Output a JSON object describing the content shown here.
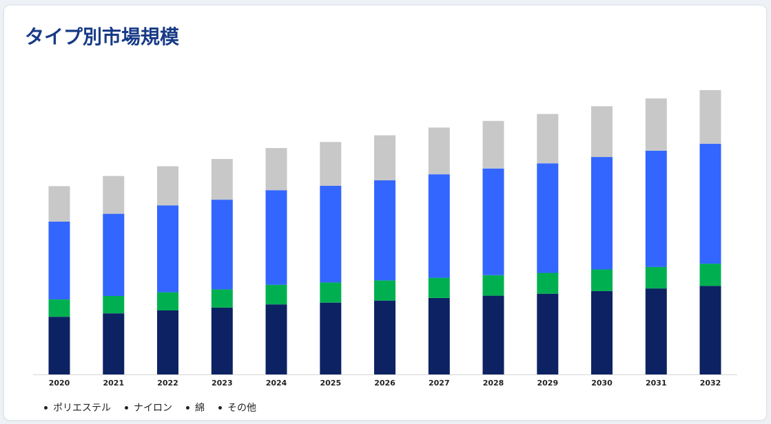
{
  "page": {
    "title": "タイプ別市場規模"
  },
  "chart_data": {
    "type": "bar",
    "stacked": true,
    "title": "タイプ別市場規模",
    "xlabel": "",
    "ylabel": "",
    "ylim": [
      0,
      100
    ],
    "grid": false,
    "legend_placement": "bottom-left",
    "categories": [
      "2020",
      "2021",
      "2022",
      "2023",
      "2024",
      "2025",
      "2026",
      "2027",
      "2028",
      "2029",
      "2030",
      "2031",
      "2032"
    ],
    "series": [
      {
        "name": "ポリエステル",
        "color": "#0d2263",
        "values": [
          20.0,
          21.2,
          22.2,
          23.2,
          24.3,
          24.9,
          25.6,
          26.5,
          27.3,
          28.0,
          28.9,
          29.8,
          30.7
        ]
      },
      {
        "name": "ナイロン",
        "color": "#00b050",
        "values": [
          6.0,
          6.0,
          6.3,
          6.3,
          6.8,
          7.0,
          7.0,
          7.0,
          7.1,
          7.2,
          7.5,
          7.5,
          7.7
        ]
      },
      {
        "name": "綿",
        "color": "#3366ff",
        "values": [
          27.0,
          28.5,
          30.1,
          31.1,
          32.8,
          33.5,
          34.7,
          35.9,
          37.0,
          38.0,
          39.0,
          40.3,
          41.6
        ]
      },
      {
        "name": "その他",
        "color": "#c8c8c8",
        "values": [
          12.3,
          13.1,
          13.6,
          14.1,
          14.6,
          15.2,
          15.6,
          16.2,
          16.5,
          17.1,
          17.6,
          18.1,
          18.6
        ]
      }
    ]
  }
}
